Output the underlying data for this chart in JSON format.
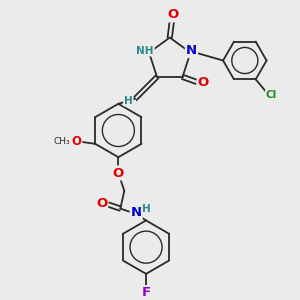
{
  "bg_color": "#ebebeb",
  "bond_color": "#2a2a2a",
  "atom_colors": {
    "O": "#e00000",
    "N": "#0000cc",
    "Cl": "#228822",
    "F": "#9900cc",
    "H": "#2a8a8a",
    "C": "#2a2a2a"
  },
  "font_size": 8.5,
  "fig_size": [
    3.0,
    3.0
  ],
  "dpi": 100
}
